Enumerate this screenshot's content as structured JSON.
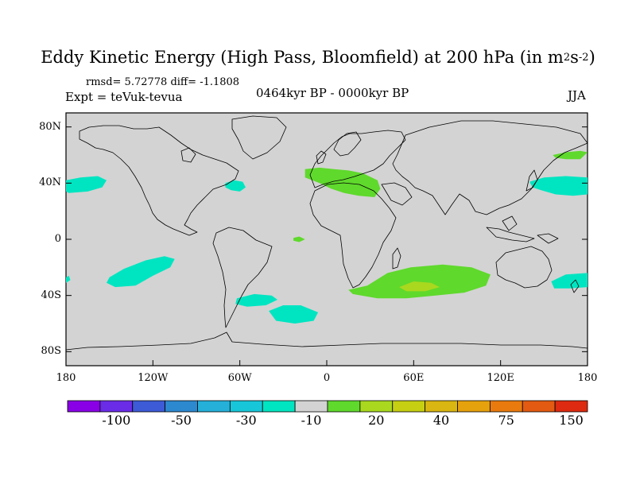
{
  "title": {
    "main": "Eddy Kinetic Energy (High Pass, Bloomfield) at 200 hPa (in m",
    "sup1": "2",
    "mid": "s",
    "sup2": "-2",
    "end": ")"
  },
  "stats_text": "rmsd= 5.72778 diff= -1.1808",
  "experiment_text": "Expt = teVuk-tevua",
  "period_text": "0464kyr BP - 0000kyr BP",
  "season_text": "JJA",
  "map": {
    "projection": "cylindrical-equidistant",
    "lon_range": [
      -180,
      180
    ],
    "lat_range": [
      -90,
      90
    ],
    "land_ocean_fill": "#d3d3d3",
    "lat_ticks": [
      {
        "value": 80,
        "label": "80N"
      },
      {
        "value": 40,
        "label": "40N"
      },
      {
        "value": 0,
        "label": "0"
      },
      {
        "value": -40,
        "label": "40S"
      },
      {
        "value": -80,
        "label": "80S"
      }
    ],
    "lon_ticks": [
      {
        "value": -180,
        "label": "180"
      },
      {
        "value": -120,
        "label": "120W"
      },
      {
        "value": -60,
        "label": "60W"
      },
      {
        "value": 0,
        "label": "0"
      },
      {
        "value": 60,
        "label": "60E"
      },
      {
        "value": 120,
        "label": "120E"
      },
      {
        "value": 180,
        "label": "180"
      }
    ]
  },
  "anomaly_regions": [
    {
      "name": "north-pacific-west",
      "level": "-10",
      "color": "#00e5c1",
      "lon": [
        -180,
        -152
      ],
      "lat": [
        42,
        28
      ],
      "ring": [
        [
          -180,
          42
        ],
        [
          -170,
          44
        ],
        [
          -158,
          45
        ],
        [
          -152,
          42
        ],
        [
          -155,
          37
        ],
        [
          -165,
          34
        ],
        [
          -178,
          33
        ],
        [
          -180,
          34
        ]
      ]
    },
    {
      "name": "north-pacific-east",
      "level": "-10",
      "color": "#00e5c1",
      "ring": [
        [
          -70,
          40
        ],
        [
          -64,
          42
        ],
        [
          -58,
          41
        ],
        [
          -56,
          37
        ],
        [
          -60,
          34
        ],
        [
          -66,
          35
        ],
        [
          -70,
          37
        ]
      ]
    },
    {
      "name": "north-pacific-far-east",
      "level": "-10",
      "color": "#00e5c1",
      "ring": [
        [
          140,
          41
        ],
        [
          150,
          44
        ],
        [
          165,
          45
        ],
        [
          180,
          44
        ],
        [
          180,
          32
        ],
        [
          170,
          31
        ],
        [
          158,
          32
        ],
        [
          148,
          35
        ],
        [
          142,
          37
        ]
      ]
    },
    {
      "name": "south-pacific",
      "level": "-10",
      "color": "#00e5c1",
      "ring": [
        [
          -150,
          -27
        ],
        [
          -140,
          -21
        ],
        [
          -125,
          -15
        ],
        [
          -112,
          -12
        ],
        [
          -105,
          -14
        ],
        [
          -108,
          -20
        ],
        [
          -120,
          -26
        ],
        [
          -132,
          -33
        ],
        [
          -146,
          -34
        ],
        [
          -152,
          -31
        ]
      ]
    },
    {
      "name": "south-pacific-edge",
      "level": "-10",
      "color": "#00e5c1",
      "ring": [
        [
          -180,
          -27
        ],
        [
          -178,
          -26
        ],
        [
          -177,
          -29
        ],
        [
          -180,
          -31
        ]
      ]
    },
    {
      "name": "south-atlantic",
      "level": "-10",
      "color": "#00e5c1",
      "ring": [
        [
          -62,
          -42
        ],
        [
          -50,
          -39
        ],
        [
          -38,
          -40
        ],
        [
          -34,
          -43
        ],
        [
          -42,
          -47
        ],
        [
          -55,
          -48
        ],
        [
          -63,
          -46
        ]
      ]
    },
    {
      "name": "south-atlantic-east",
      "level": "-10",
      "color": "#00e5c1",
      "ring": [
        [
          -40,
          -51
        ],
        [
          -30,
          -47
        ],
        [
          -18,
          -47
        ],
        [
          -6,
          -52
        ],
        [
          -9,
          -58
        ],
        [
          -22,
          -60
        ],
        [
          -35,
          -58
        ]
      ]
    },
    {
      "name": "australia-east",
      "level": "-10",
      "color": "#00e5c1",
      "ring": [
        [
          155,
          -30
        ],
        [
          165,
          -25
        ],
        [
          180,
          -24
        ],
        [
          180,
          -34
        ],
        [
          168,
          -35
        ],
        [
          157,
          -35
        ]
      ]
    },
    {
      "name": "mediterranean",
      "level": "20",
      "color": "#5fd92c",
      "ring": [
        [
          -15,
          50
        ],
        [
          -5,
          51
        ],
        [
          5,
          50
        ],
        [
          15,
          49
        ],
        [
          25,
          47
        ],
        [
          35,
          42
        ],
        [
          37,
          36
        ],
        [
          33,
          30
        ],
        [
          22,
          31
        ],
        [
          12,
          33
        ],
        [
          3,
          36
        ],
        [
          -5,
          40
        ],
        [
          -15,
          44
        ]
      ]
    },
    {
      "name": "atlantic-equatorial",
      "level": "20",
      "color": "#5fd92c",
      "ring": [
        [
          -23,
          1
        ],
        [
          -19,
          2
        ],
        [
          -15,
          0
        ],
        [
          -19,
          -2
        ],
        [
          -23,
          -1
        ]
      ]
    },
    {
      "name": "bering",
      "level": "20",
      "color": "#5fd92c",
      "ring": [
        [
          156,
          60
        ],
        [
          165,
          62
        ],
        [
          175,
          63
        ],
        [
          180,
          62
        ],
        [
          175,
          57
        ],
        [
          165,
          57
        ],
        [
          158,
          58
        ]
      ]
    },
    {
      "name": "southern-indian",
      "level": "20",
      "color": "#5fd92c",
      "ring": [
        [
          15,
          -36
        ],
        [
          28,
          -33
        ],
        [
          42,
          -24
        ],
        [
          58,
          -20
        ],
        [
          80,
          -18
        ],
        [
          100,
          -20
        ],
        [
          113,
          -25
        ],
        [
          110,
          -33
        ],
        [
          95,
          -38
        ],
        [
          75,
          -40
        ],
        [
          55,
          -42
        ],
        [
          35,
          -42
        ],
        [
          18,
          -39
        ]
      ]
    },
    {
      "name": "southern-indian-core",
      "level": "30",
      "color": "#a9d81f",
      "ring": [
        [
          50,
          -34
        ],
        [
          60,
          -30
        ],
        [
          72,
          -31
        ],
        [
          78,
          -34
        ],
        [
          68,
          -37
        ],
        [
          55,
          -37
        ]
      ]
    }
  ],
  "colorbar": {
    "colors": [
      "#8a00e6",
      "#6a2ce6",
      "#3d5bd6",
      "#2c89cf",
      "#24b0d9",
      "#17c7d9",
      "#00e5c1",
      "#d3d3d3",
      "#5fd92c",
      "#a9d81f",
      "#c6cf12",
      "#d9b611",
      "#e6a20c",
      "#e97a0e",
      "#e35a12",
      "#dd2a10"
    ],
    "labels": [
      {
        "after_box": 2,
        "text": "-100"
      },
      {
        "after_box": 4,
        "text": "-50"
      },
      {
        "after_box": 6,
        "text": "-30"
      },
      {
        "after_box": 8,
        "text": "-10"
      },
      {
        "after_box": 10,
        "text": "20"
      },
      {
        "after_box": 12,
        "text": "40"
      },
      {
        "after_box": 14,
        "text": "75"
      },
      {
        "after_box": 16,
        "text": "150"
      }
    ]
  }
}
